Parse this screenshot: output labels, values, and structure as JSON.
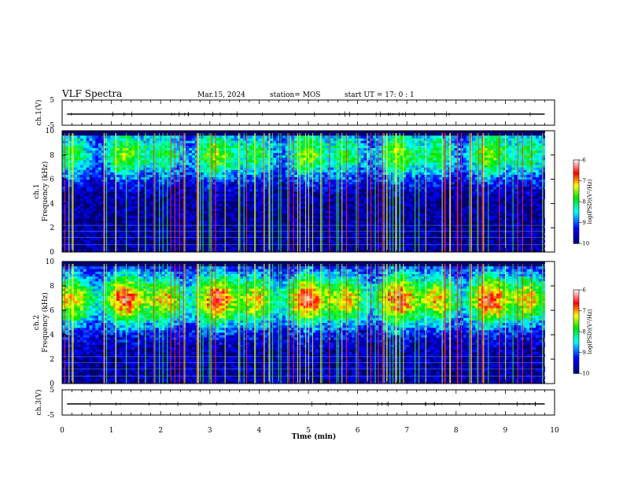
{
  "header": {
    "title": "VLF Spectra",
    "date": "Mar.15, 2024",
    "station": "station= MOS",
    "start": "start  UT  =   17: 0  : 1"
  },
  "chart_data": [
    {
      "type": "line",
      "panel": "ch1-waveform",
      "ylabel": "ch.1(V)",
      "ylim": [
        -5,
        5
      ],
      "yticks": [
        "5",
        "-5"
      ],
      "xlim": [
        0,
        10
      ],
      "series": [
        {
          "values_hint": "near 0 V, flat trace",
          "level": -0.6
        }
      ]
    },
    {
      "type": "heatmap",
      "panel": "ch1-spectrogram",
      "ylabel": "ch.1\nFrequency (kHz)",
      "ylim": [
        0,
        10
      ],
      "yticks": [
        "0",
        "2",
        "4",
        "6",
        "8",
        "10"
      ],
      "xlim": [
        0,
        9.8
      ],
      "colorbar": {
        "label": "log(PSD)(V²/Hz)",
        "range": [
          -10,
          -6
        ],
        "ticks": [
          "-6",
          "-7",
          "-8",
          "-9",
          "-10"
        ]
      },
      "band_profile": {
        "peak_khz": 8.0,
        "peak_level": -7.6,
        "low_level": -9.8
      }
    },
    {
      "type": "heatmap",
      "panel": "ch2-spectrogram",
      "ylabel": "ch.2\nFrequency (kHz)",
      "ylim": [
        0,
        10
      ],
      "yticks": [
        "0",
        "2",
        "4",
        "6",
        "8",
        "10"
      ],
      "xlim": [
        0,
        9.8
      ],
      "colorbar": {
        "label": "log(PSD)(V²/Hz)",
        "range": [
          -10,
          -6
        ],
        "ticks": [
          "-6",
          "-7",
          "-8",
          "-9",
          "-10"
        ]
      },
      "band_profile": {
        "peak_khz": 6.8,
        "peak_level": -6.6,
        "low_level": -9.7
      }
    },
    {
      "type": "line",
      "panel": "ch3-waveform",
      "ylabel": "ch.3(V)",
      "ylim": [
        -5,
        5
      ],
      "yticks": [
        "5",
        "-5"
      ],
      "xlim": [
        0,
        10
      ],
      "series": [
        {
          "values_hint": "near 0 V, flat trace",
          "level": -0.6
        }
      ]
    }
  ],
  "xaxis": {
    "label": "Time  (min)",
    "ticks": [
      "0",
      "1",
      "2",
      "3",
      "4",
      "5",
      "6",
      "7",
      "8",
      "9",
      "10"
    ],
    "xlim": [
      0,
      10
    ]
  },
  "colors": {
    "colormap": [
      "#000080",
      "#0000ff",
      "#00ffff",
      "#00ff00",
      "#ffff00",
      "#ff0000",
      "#ff0000"
    ]
  }
}
